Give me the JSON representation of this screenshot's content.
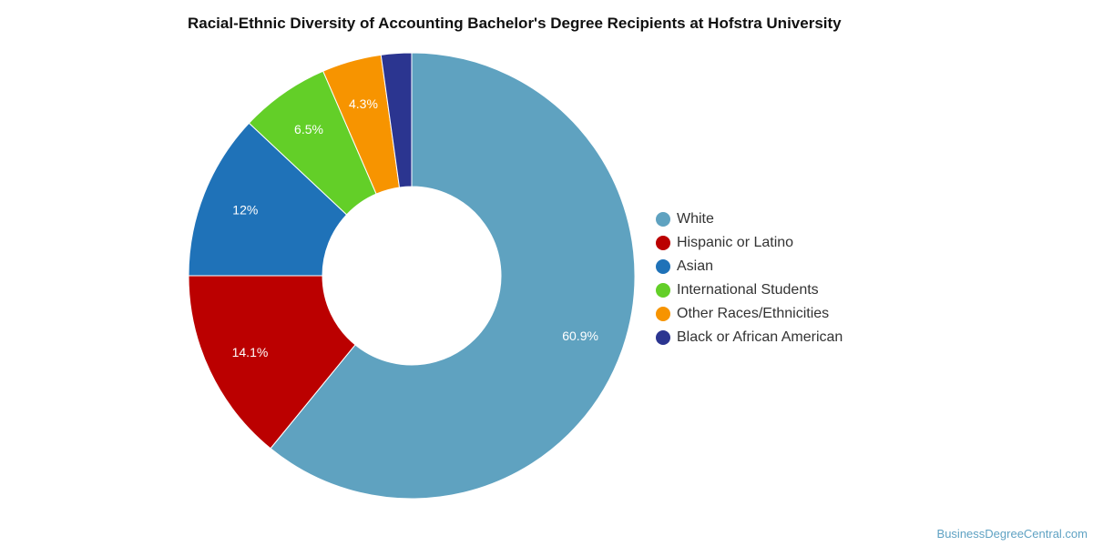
{
  "chart_data": {
    "type": "pie",
    "title": "Racial-Ethnic Diversity of Accounting Bachelor's Degree Recipients at Hofstra University",
    "legend_position": "right",
    "slices": [
      {
        "name": "White",
        "value": 60.9,
        "label": "60.9%",
        "color": "#5fa2c0"
      },
      {
        "name": "Hispanic or Latino",
        "value": 14.1,
        "label": "14.1%",
        "color": "#bb0000"
      },
      {
        "name": "Asian",
        "value": 12.0,
        "label": "12%",
        "color": "#1f72b8"
      },
      {
        "name": "International Students",
        "value": 6.5,
        "label": "6.5%",
        "color": "#63cf28"
      },
      {
        "name": "Other Races/Ethnicities",
        "value": 4.3,
        "label": "4.3%",
        "color": "#f79400"
      },
      {
        "name": "Black or African American",
        "value": 2.2,
        "label": "",
        "color": "#2b3590"
      }
    ]
  },
  "credit": "BusinessDegreeCentral.com"
}
